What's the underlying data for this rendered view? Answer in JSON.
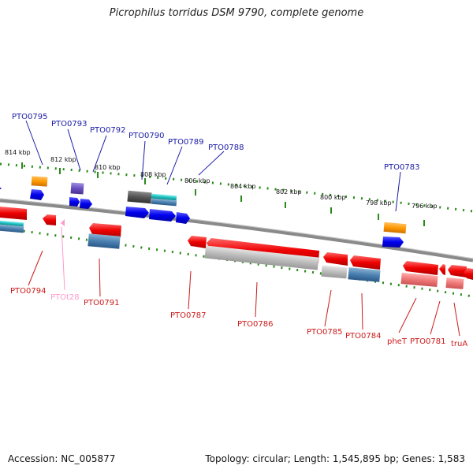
{
  "title": "Picrophilus torridus DSM 9790, complete genome",
  "footer": {
    "accession": "Accession: NC_005877",
    "summary": "Topology: circular; Length: 1,545,895 bp; Genes: 1,583"
  },
  "colors": {
    "label_top": "#1a1aa6",
    "label_bottom": "#cc1a1a",
    "label_trna": "#ff99cc",
    "tick": "#2a8a1a",
    "backbone": "#8a8a8a"
  },
  "kbp_ticks": [
    "814 kbp",
    "812 kbp",
    "810 kbp",
    "808 kbp",
    "806 kbp",
    "804 kbp",
    "802 kbp",
    "800 kbp",
    "798 kbp",
    "796 kbp"
  ],
  "top_labels": [
    "PTO0795",
    "PTO0793",
    "PTO0792",
    "PTO0790",
    "PTO0789",
    "PTO0788",
    "PTO0783"
  ],
  "bottom_labels": [
    "PTO0794",
    "PTOt28",
    "PTO0791",
    "PTO0787",
    "PTO0786",
    "PTO0785",
    "PTO0784",
    "pheT",
    "PTO0781",
    "truA"
  ]
}
